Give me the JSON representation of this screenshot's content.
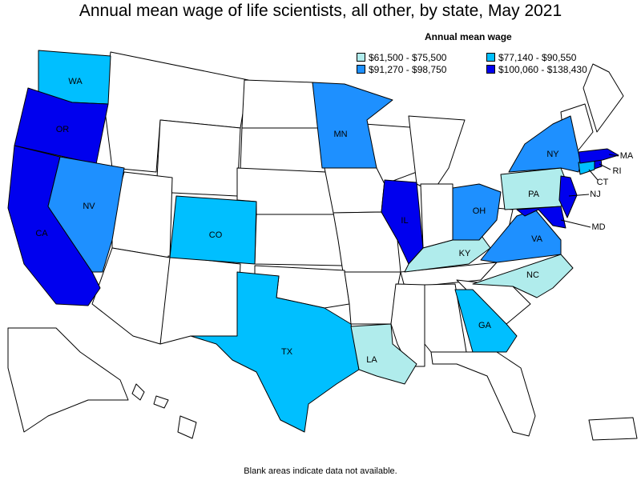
{
  "title": "Annual mean wage of life scientists, all other, by state, May 2021",
  "legend": {
    "title": "Annual mean wage",
    "items": [
      {
        "label": "$61,500 - $75,500",
        "color": "#b0ecec"
      },
      {
        "label": "$77,140 - $90,550",
        "color": "#00bfff"
      },
      {
        "label": "$91,270 - $98,750",
        "color": "#1e90ff"
      },
      {
        "label": "$100,060 - $138,430",
        "color": "#0000ee"
      }
    ]
  },
  "footnote": "Blank areas indicate data not available.",
  "states": {
    "WA": {
      "label": "WA",
      "bin": 1
    },
    "OR": {
      "label": "OR",
      "bin": 3
    },
    "CA": {
      "label": "CA",
      "bin": 3
    },
    "NV": {
      "label": "NV",
      "bin": 2
    },
    "CO": {
      "label": "CO",
      "bin": 1
    },
    "TX": {
      "label": "TX",
      "bin": 1
    },
    "MN": {
      "label": "MN",
      "bin": 2
    },
    "IL": {
      "label": "IL",
      "bin": 3
    },
    "LA": {
      "label": "LA",
      "bin": 0
    },
    "KY": {
      "label": "KY",
      "bin": 0
    },
    "OH": {
      "label": "OH",
      "bin": 2
    },
    "GA": {
      "label": "GA",
      "bin": 1
    },
    "NC": {
      "label": "NC",
      "bin": 0
    },
    "VA": {
      "label": "VA",
      "bin": 2
    },
    "PA": {
      "label": "PA",
      "bin": 0
    },
    "NY": {
      "label": "NY",
      "bin": 2
    },
    "MD": {
      "label": "MD",
      "bin": 3
    },
    "NJ": {
      "label": "NJ",
      "bin": 3
    },
    "CT": {
      "label": "CT",
      "bin": 1
    },
    "RI": {
      "label": "RI",
      "bin": 3
    },
    "MA": {
      "label": "MA",
      "bin": 3
    }
  }
}
